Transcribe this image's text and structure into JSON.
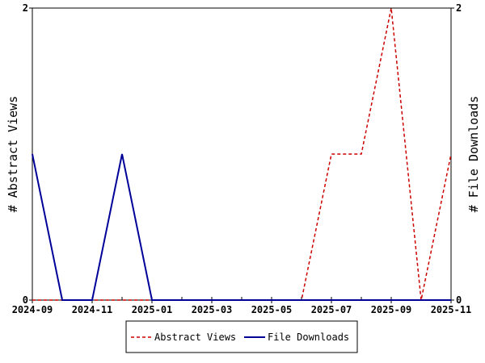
{
  "chart_data": {
    "type": "line",
    "x": [
      "2024-09",
      "2024-10",
      "2024-11",
      "2024-12",
      "2025-01",
      "2025-02",
      "2025-03",
      "2025-04",
      "2025-05",
      "2025-06",
      "2025-07",
      "2025-08",
      "2025-09",
      "2025-10",
      "2025-11"
    ],
    "x_tick_labels": [
      "2024-09",
      "2024-11",
      "2025-01",
      "2025-03",
      "2025-05",
      "2025-07",
      "2025-09",
      "2025-11"
    ],
    "ylabel_left": "# Abstract Views",
    "ylabel_right": "# File Downloads",
    "y_ticks_left": [
      "0",
      "2"
    ],
    "y_ticks_right": [
      "0",
      "2"
    ],
    "ylim_left": [
      0,
      2
    ],
    "ylim_right": [
      0,
      2
    ],
    "series": [
      {
        "name": "Abstract Views",
        "axis": "left",
        "style": "dashed",
        "color": "#cc0000",
        "values": [
          0,
          0,
          0,
          0,
          0,
          0,
          0,
          0,
          0,
          0,
          1,
          1,
          2,
          0,
          1
        ]
      },
      {
        "name": "File Downloads",
        "axis": "right",
        "style": "solid",
        "color": "#000099",
        "values": [
          1,
          0,
          0,
          1,
          0,
          0,
          0,
          0,
          0,
          0,
          0,
          0,
          0,
          0,
          0
        ]
      }
    ],
    "grid": false,
    "legend_position": "bottom"
  }
}
